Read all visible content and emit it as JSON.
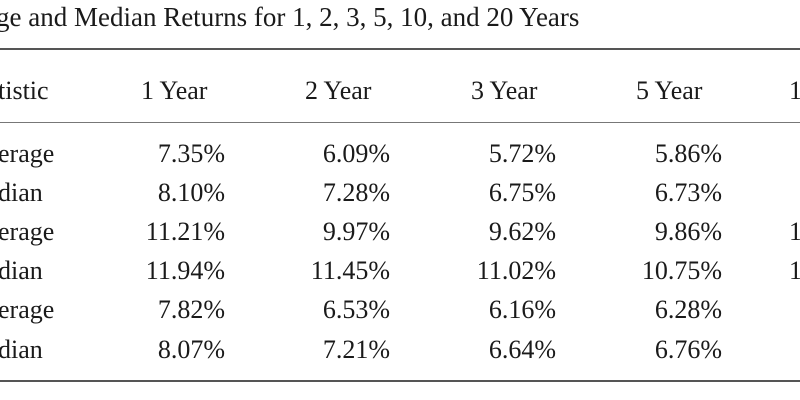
{
  "title": "ge and Median Returns for 1, 2, 3, 5, 10, and 20 Years",
  "header": [
    "tistic",
    "1 Year",
    "2 Year",
    "3 Year",
    "5 Year",
    "1"
  ],
  "rows": [
    {
      "label": "erage",
      "values": [
        "7.35%",
        "6.09%",
        "5.72%",
        "5.86%",
        ""
      ]
    },
    {
      "label": "dian",
      "values": [
        "8.10%",
        "7.28%",
        "6.75%",
        "6.73%",
        ""
      ]
    },
    {
      "label": "erage",
      "values": [
        "11.21%",
        "9.97%",
        "9.62%",
        "9.86%",
        "1"
      ]
    },
    {
      "label": "dian",
      "values": [
        "11.94%",
        "11.45%",
        "11.02%",
        "10.75%",
        "1"
      ]
    },
    {
      "label": "erage",
      "values": [
        "7.82%",
        "6.53%",
        "6.16%",
        "6.28%",
        ""
      ]
    },
    {
      "label": "dian",
      "values": [
        "8.07%",
        "7.21%",
        "6.64%",
        "6.76%",
        ""
      ]
    }
  ]
}
